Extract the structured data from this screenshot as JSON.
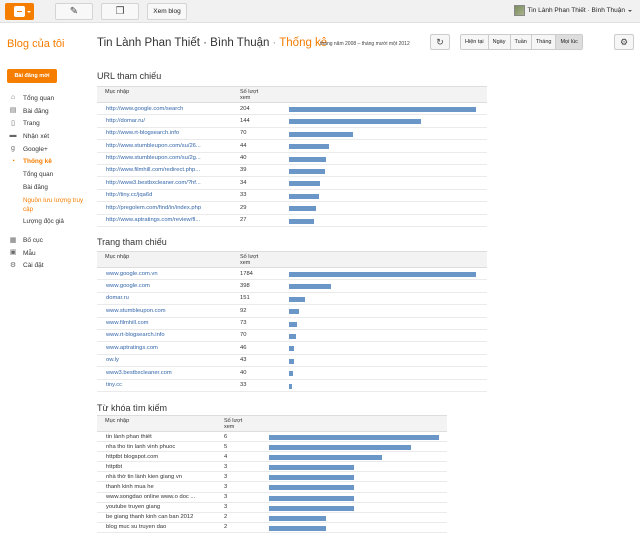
{
  "topbar": {
    "view_blog": "Xem blog",
    "account_name": "Tin Lành Phan Thiết · Bình Thuận"
  },
  "sidebar": {
    "title": "Blog của tôi",
    "new_post": "Bài đăng mới",
    "items": [
      {
        "label": "Tổng quan",
        "icon": "home-icon"
      },
      {
        "label": "Bài đăng",
        "icon": "posts-icon"
      },
      {
        "label": "Trang",
        "icon": "page-icon"
      },
      {
        "label": "Nhận xét",
        "icon": "comment-icon"
      },
      {
        "label": "Google+",
        "icon": "google-plus-icon"
      },
      {
        "label": "Thống kê",
        "icon": "stats-icon"
      }
    ],
    "stats_sub": [
      "Tổng quan",
      "Bài đăng",
      "Nguồn lưu lượng truy cập",
      "Lượng độc giả"
    ],
    "items2": [
      {
        "label": "Bố cục",
        "icon": "layout-icon"
      },
      {
        "label": "Mẫu",
        "icon": "template-icon"
      },
      {
        "label": "Cài đặt",
        "icon": "settings-icon"
      }
    ]
  },
  "header": {
    "blog_name": "Tin Lành Phan Thiết · Bình Thuận",
    "section": "Thống kê",
    "date_range": "tháng năm 2008 – tháng mười một 2012",
    "periods": [
      "Hiện tại",
      "Ngày",
      "Tuần",
      "Tháng",
      "Mọi lúc"
    ],
    "active_period": "Mọi lúc"
  },
  "referring_urls": {
    "title": "URL tham chiếu",
    "col_entry": "Mục nhập",
    "col_views": "Số lượt xem",
    "rows": [
      {
        "entry": "http://www.google.com/search",
        "views": 204
      },
      {
        "entry": "http://domar.ru/",
        "views": 144
      },
      {
        "entry": "http://www.rt-blogsearch.info",
        "views": 70
      },
      {
        "entry": "http://www.stumbleupon.com/su/26...",
        "views": 44
      },
      {
        "entry": "http://www.stumbleupon.com/su/2g...",
        "views": 40
      },
      {
        "entry": "http://www.filmhill.com/redirect.php...",
        "views": 39
      },
      {
        "entry": "http://www3.bestbxcleaner.com/?hf...",
        "views": 34
      },
      {
        "entry": "http://tiny.cc/jqa6d",
        "views": 33
      },
      {
        "entry": "http://pregolem.com/find/in/index.php",
        "views": 29
      },
      {
        "entry": "http://www.aptratings.com/review/fl...",
        "views": 27
      }
    ]
  },
  "referring_sites": {
    "title": "Trang tham chiếu",
    "col_entry": "Mục nhập",
    "col_views": "Số lượt xem",
    "rows": [
      {
        "entry": "www.google.com.vn",
        "views": 1784
      },
      {
        "entry": "www.google.com",
        "views": 398
      },
      {
        "entry": "domar.ru",
        "views": 151
      },
      {
        "entry": "www.stumbleupon.com",
        "views": 92
      },
      {
        "entry": "www.filmhill.com",
        "views": 73
      },
      {
        "entry": "www.rt-blogsearch.info",
        "views": 70
      },
      {
        "entry": "www.aptratings.com",
        "views": 46
      },
      {
        "entry": "ow.ly",
        "views": 43
      },
      {
        "entry": "www3.bestbxcleaner.com",
        "views": 40
      },
      {
        "entry": "tiny.cc",
        "views": 33
      }
    ]
  },
  "search_keywords": {
    "title": "Từ khóa tìm kiếm",
    "col_entry": "Mục nhập",
    "col_views": "Số lượt xem",
    "rows": [
      {
        "entry": "tin lành phan thiết",
        "views": 6
      },
      {
        "entry": "nha tho tin lanh vinh phuoc",
        "views": 5
      },
      {
        "entry": "httptbt blogspot.com",
        "views": 4
      },
      {
        "entry": "httptbt",
        "views": 3
      },
      {
        "entry": "nhà thờ tin lành kien giang vn",
        "views": 3
      },
      {
        "entry": "thanh kinh mua he",
        "views": 3
      },
      {
        "entry": "www.songdao online www.o doc ...",
        "views": 3
      },
      {
        "entry": "youtube truyen giang",
        "views": 3
      },
      {
        "entry": "be giang thanh kinh can ban 2012",
        "views": 2
      },
      {
        "entry": "blog muc su truyen dao",
        "views": 2
      }
    ]
  },
  "colors": {
    "accent": "#f57d00",
    "bar": "#6a97c8",
    "link": "#3366aa"
  }
}
